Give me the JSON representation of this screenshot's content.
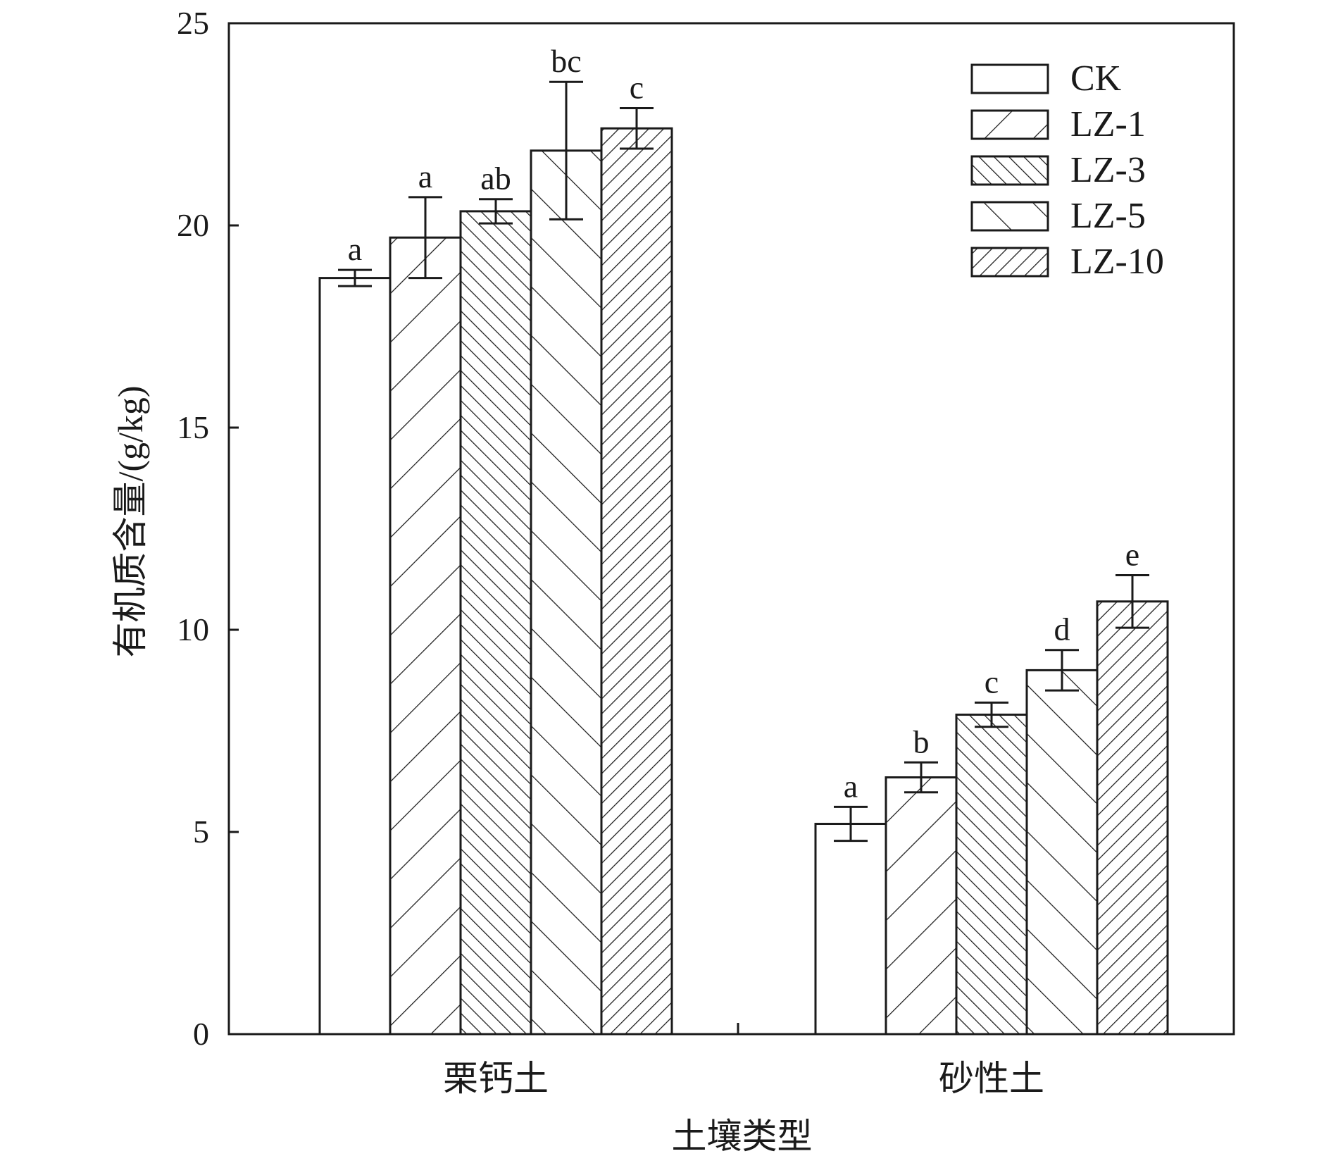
{
  "chart_data": {
    "type": "bar",
    "xlabel": "土壤类型",
    "ylabel": "有机质含量/(g/kg)",
    "ylim": [
      0,
      25
    ],
    "yticks": [
      "0",
      "5",
      "10",
      "15",
      "20",
      "25"
    ],
    "categories": [
      "栗钙土",
      "砂性土"
    ],
    "grid": false,
    "legend_position": "top-right",
    "series": [
      {
        "name": "CK",
        "pattern": "none",
        "values": [
          18.7,
          5.2
        ],
        "errors": [
          0.2,
          0.42
        ],
        "letters": [
          "a",
          "a"
        ]
      },
      {
        "name": "LZ-1",
        "pattern": "back-wide",
        "values": [
          19.7,
          6.35
        ],
        "errors": [
          1.0,
          0.37
        ],
        "letters": [
          "a",
          "b"
        ]
      },
      {
        "name": "LZ-3",
        "pattern": "forward-dense",
        "values": [
          20.35,
          7.9
        ],
        "errors": [
          0.3,
          0.3
        ],
        "letters": [
          "ab",
          "c"
        ]
      },
      {
        "name": "LZ-5",
        "pattern": "forward-wide",
        "values": [
          21.85,
          9.0
        ],
        "errors": [
          1.7,
          0.5
        ],
        "letters": [
          "bc",
          "d"
        ]
      },
      {
        "name": "LZ-10",
        "pattern": "back-dense",
        "values": [
          22.4,
          10.7
        ],
        "errors": [
          0.5,
          0.65
        ],
        "letters": [
          "c",
          "e"
        ]
      }
    ]
  }
}
